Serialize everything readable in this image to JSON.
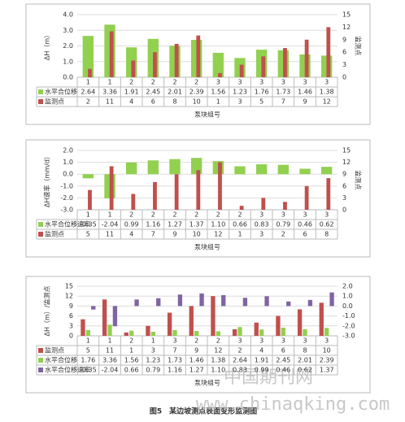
{
  "chart_data": [
    {
      "type": "bar",
      "ylabel": "ΔH（m）",
      "y2label": "监测点",
      "xlabel": "泵块组号",
      "categories": [
        "1",
        "1",
        "2",
        "2",
        "2",
        "2",
        "3",
        "3",
        "3",
        "3",
        "3",
        "3"
      ],
      "series": [
        {
          "name": "水平合位移",
          "color": "#92d050",
          "values": [
            2.64,
            3.36,
            1.91,
            2.45,
            2.01,
            2.39,
            1.56,
            1.23,
            1.76,
            1.73,
            1.46,
            1.38
          ]
        },
        {
          "name": "监测点",
          "color": "#c0504d",
          "axis": "y2",
          "values": [
            2,
            11,
            4,
            6,
            8,
            10,
            1,
            3,
            5,
            7,
            9,
            12
          ]
        }
      ],
      "ylim": [
        0,
        4
      ],
      "yticks": [
        {
          "value": 0,
          "label": "0.0"
        },
        {
          "value": 1,
          "label": "1.0"
        },
        {
          "value": 2,
          "label": "2.0"
        },
        {
          "value": 3,
          "label": "3.0"
        },
        {
          "value": 4,
          "label": "4.0"
        }
      ],
      "y2lim": [
        0,
        15
      ],
      "y2ticks": [
        0,
        3,
        6,
        9,
        12,
        15
      ],
      "grid": true
    },
    {
      "type": "bar",
      "ylabel": "ΔH速率（mm/d）",
      "y2label": "监测点",
      "xlabel": "泵块组号",
      "categories": [
        "1",
        "1",
        "2",
        "2",
        "2",
        "2",
        "2",
        "2",
        "3",
        "3",
        "3",
        "3"
      ],
      "series": [
        {
          "name": "水平合位移速率",
          "color": "#92d050",
          "values": [
            -0.35,
            -2.04,
            0.99,
            1.16,
            1.27,
            1.37,
            1.1,
            0.66,
            0.83,
            0.79,
            0.46,
            0.62
          ],
          "value_labels": [
            "-0.35",
            "-2.04",
            "0.99",
            "1.16",
            "1.27",
            "1.37",
            "1.10",
            "0.66",
            "0.83",
            "0.79",
            "0.46",
            "0.62"
          ]
        },
        {
          "name": "监测点",
          "color": "#c0504d",
          "axis": "y2",
          "values": [
            5,
            11,
            4,
            7,
            9,
            10,
            12,
            1,
            3,
            2,
            6,
            8
          ]
        }
      ],
      "ylim": [
        -3,
        2
      ],
      "yticks": [
        {
          "value": -3,
          "label": "-3.0"
        },
        {
          "value": -2,
          "label": "-2.0"
        },
        {
          "value": -1,
          "label": "-1.0"
        },
        {
          "value": 0,
          "label": "0.0"
        },
        {
          "value": 1,
          "label": "1.0"
        },
        {
          "value": 2,
          "label": "2.0"
        }
      ],
      "y2lim": [
        0,
        15
      ],
      "y2ticks": [
        0,
        3,
        6,
        9,
        12,
        15
      ],
      "grid": true
    },
    {
      "type": "bar",
      "ylabel": "ΔH（m）/监测点",
      "xlabel": "泵块组号",
      "categories": [
        "1",
        "1",
        "2",
        "1",
        "3",
        "2",
        "2",
        "3",
        "3",
        "3",
        "3",
        "3"
      ],
      "series": [
        {
          "name": "监测点",
          "color": "#c0504d",
          "values": [
            5,
            11,
            1,
            3,
            7,
            9,
            12,
            2,
            4,
            6,
            8,
            10
          ]
        },
        {
          "name": "水平合位移",
          "color": "#92d050",
          "values": [
            1.76,
            3.36,
            1.56,
            1.23,
            1.73,
            1.46,
            1.38,
            2.64,
            1.91,
            2.45,
            2.01,
            2.39
          ]
        },
        {
          "name": "水平合位移速率",
          "color": "#8064a2",
          "axis": "y2",
          "values": [
            -0.35,
            -2.04,
            0.66,
            0.79,
            1.16,
            1.27,
            1.1,
            0.83,
            0.99,
            0.46,
            0.62,
            1.37
          ],
          "value_labels": [
            "-0.35",
            "-2.04",
            "0.66",
            "0.79",
            "1.16",
            "1.27",
            "1.10",
            "0.83",
            "0.99",
            "0.46",
            "0.62",
            "1.37"
          ]
        }
      ],
      "ylim": [
        0,
        15
      ],
      "yticks": [
        0,
        3,
        6,
        9,
        12,
        15
      ],
      "y2lim": [
        -3,
        2
      ],
      "y2ticks": [
        {
          "value": -3,
          "label": "-3.0"
        },
        {
          "value": -2,
          "label": "-2.0"
        },
        {
          "value": -1,
          "label": "-1.0"
        },
        {
          "value": 0,
          "label": "0.0"
        },
        {
          "value": 1,
          "label": "1.0"
        },
        {
          "value": 2,
          "label": "2.0"
        }
      ],
      "grid": true
    }
  ],
  "caption": "图5　某边坡测点表面变形监测图",
  "watermark": {
    "name": "中国期刊网",
    "url": "www.chinaqking.com"
  }
}
